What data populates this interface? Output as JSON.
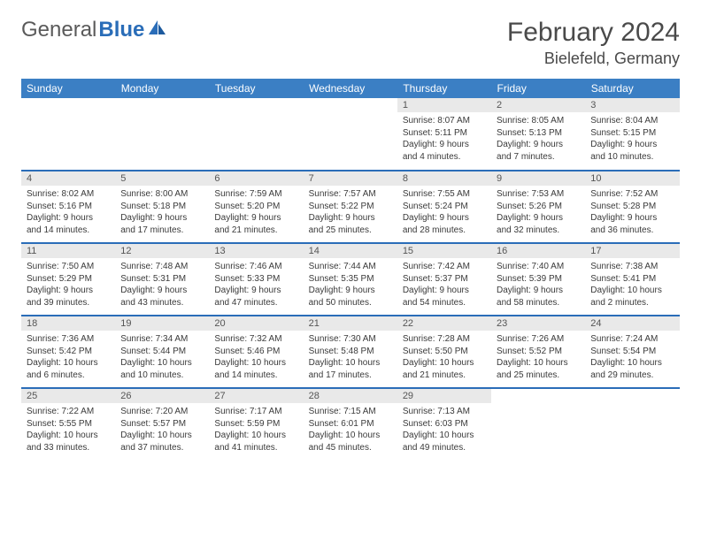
{
  "brand": {
    "part1": "General",
    "part2": "Blue"
  },
  "title": "February 2024",
  "location": "Bielefeld, Germany",
  "colors": {
    "header_bg": "#3b7fc4",
    "header_text": "#ffffff",
    "row_divider": "#2a6db8",
    "daynum_bg": "#e9e9e9",
    "text": "#3a3a3a",
    "title_text": "#4a4a4a",
    "logo_gray": "#5a5a5a",
    "logo_blue": "#2a6db8"
  },
  "weekday_headers": [
    "Sunday",
    "Monday",
    "Tuesday",
    "Wednesday",
    "Thursday",
    "Friday",
    "Saturday"
  ],
  "weeks": [
    [
      null,
      null,
      null,
      null,
      {
        "n": "1",
        "sunrise": "8:07 AM",
        "sunset": "5:11 PM",
        "daylight": "9 hours and 4 minutes."
      },
      {
        "n": "2",
        "sunrise": "8:05 AM",
        "sunset": "5:13 PM",
        "daylight": "9 hours and 7 minutes."
      },
      {
        "n": "3",
        "sunrise": "8:04 AM",
        "sunset": "5:15 PM",
        "daylight": "9 hours and 10 minutes."
      }
    ],
    [
      {
        "n": "4",
        "sunrise": "8:02 AM",
        "sunset": "5:16 PM",
        "daylight": "9 hours and 14 minutes."
      },
      {
        "n": "5",
        "sunrise": "8:00 AM",
        "sunset": "5:18 PM",
        "daylight": "9 hours and 17 minutes."
      },
      {
        "n": "6",
        "sunrise": "7:59 AM",
        "sunset": "5:20 PM",
        "daylight": "9 hours and 21 minutes."
      },
      {
        "n": "7",
        "sunrise": "7:57 AM",
        "sunset": "5:22 PM",
        "daylight": "9 hours and 25 minutes."
      },
      {
        "n": "8",
        "sunrise": "7:55 AM",
        "sunset": "5:24 PM",
        "daylight": "9 hours and 28 minutes."
      },
      {
        "n": "9",
        "sunrise": "7:53 AM",
        "sunset": "5:26 PM",
        "daylight": "9 hours and 32 minutes."
      },
      {
        "n": "10",
        "sunrise": "7:52 AM",
        "sunset": "5:28 PM",
        "daylight": "9 hours and 36 minutes."
      }
    ],
    [
      {
        "n": "11",
        "sunrise": "7:50 AM",
        "sunset": "5:29 PM",
        "daylight": "9 hours and 39 minutes."
      },
      {
        "n": "12",
        "sunrise": "7:48 AM",
        "sunset": "5:31 PM",
        "daylight": "9 hours and 43 minutes."
      },
      {
        "n": "13",
        "sunrise": "7:46 AM",
        "sunset": "5:33 PM",
        "daylight": "9 hours and 47 minutes."
      },
      {
        "n": "14",
        "sunrise": "7:44 AM",
        "sunset": "5:35 PM",
        "daylight": "9 hours and 50 minutes."
      },
      {
        "n": "15",
        "sunrise": "7:42 AM",
        "sunset": "5:37 PM",
        "daylight": "9 hours and 54 minutes."
      },
      {
        "n": "16",
        "sunrise": "7:40 AM",
        "sunset": "5:39 PM",
        "daylight": "9 hours and 58 minutes."
      },
      {
        "n": "17",
        "sunrise": "7:38 AM",
        "sunset": "5:41 PM",
        "daylight": "10 hours and 2 minutes."
      }
    ],
    [
      {
        "n": "18",
        "sunrise": "7:36 AM",
        "sunset": "5:42 PM",
        "daylight": "10 hours and 6 minutes."
      },
      {
        "n": "19",
        "sunrise": "7:34 AM",
        "sunset": "5:44 PM",
        "daylight": "10 hours and 10 minutes."
      },
      {
        "n": "20",
        "sunrise": "7:32 AM",
        "sunset": "5:46 PM",
        "daylight": "10 hours and 14 minutes."
      },
      {
        "n": "21",
        "sunrise": "7:30 AM",
        "sunset": "5:48 PM",
        "daylight": "10 hours and 17 minutes."
      },
      {
        "n": "22",
        "sunrise": "7:28 AM",
        "sunset": "5:50 PM",
        "daylight": "10 hours and 21 minutes."
      },
      {
        "n": "23",
        "sunrise": "7:26 AM",
        "sunset": "5:52 PM",
        "daylight": "10 hours and 25 minutes."
      },
      {
        "n": "24",
        "sunrise": "7:24 AM",
        "sunset": "5:54 PM",
        "daylight": "10 hours and 29 minutes."
      }
    ],
    [
      {
        "n": "25",
        "sunrise": "7:22 AM",
        "sunset": "5:55 PM",
        "daylight": "10 hours and 33 minutes."
      },
      {
        "n": "26",
        "sunrise": "7:20 AM",
        "sunset": "5:57 PM",
        "daylight": "10 hours and 37 minutes."
      },
      {
        "n": "27",
        "sunrise": "7:17 AM",
        "sunset": "5:59 PM",
        "daylight": "10 hours and 41 minutes."
      },
      {
        "n": "28",
        "sunrise": "7:15 AM",
        "sunset": "6:01 PM",
        "daylight": "10 hours and 45 minutes."
      },
      {
        "n": "29",
        "sunrise": "7:13 AM",
        "sunset": "6:03 PM",
        "daylight": "10 hours and 49 minutes."
      },
      null,
      null
    ]
  ],
  "labels": {
    "sunrise": "Sunrise:",
    "sunset": "Sunset:",
    "daylight": "Daylight:"
  }
}
